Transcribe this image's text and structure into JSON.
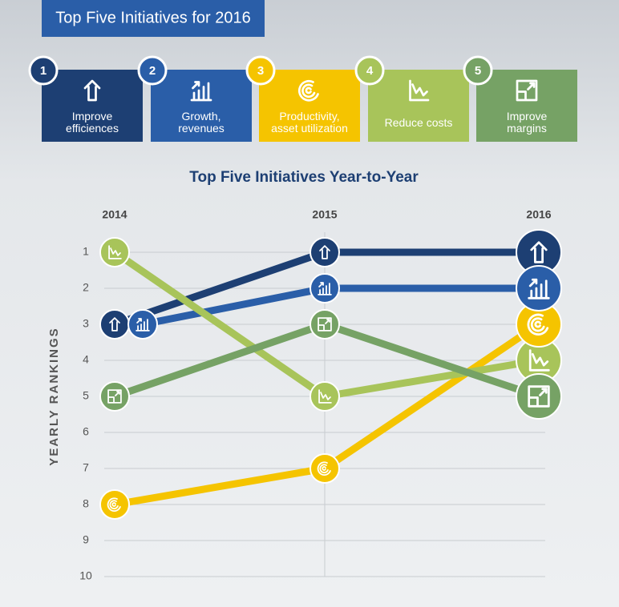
{
  "header": {
    "title": "Top Five Initiatives for 2016",
    "numbers": [
      "1",
      "2",
      "3",
      "4",
      "5"
    ]
  },
  "chart_data": {
    "type": "line",
    "title": "Top Five Initiatives Year-to-Year",
    "categories": [
      "2014",
      "2015",
      "2016"
    ],
    "y_label": "YEARLY RANKINGS",
    "ylim": [
      10,
      1
    ],
    "yticks": [
      1,
      2,
      3,
      4,
      5,
      6,
      7,
      8,
      9,
      10
    ],
    "series": [
      {
        "name": "Improve efficiences",
        "color": "#1d3f73",
        "values": [
          3,
          1,
          1
        ]
      },
      {
        "name": "Growth, revenues",
        "color": "#2a5ea8",
        "values": [
          3,
          2,
          2
        ]
      },
      {
        "name": "Productivity, asset utilization",
        "color": "#f5c400",
        "values": [
          8,
          7,
          3
        ]
      },
      {
        "name": "Reduce costs",
        "color": "#a8c45a",
        "values": [
          1,
          5,
          4
        ]
      },
      {
        "name": "Improve margins",
        "color": "#76a265",
        "values": [
          5,
          3,
          5
        ]
      }
    ]
  }
}
